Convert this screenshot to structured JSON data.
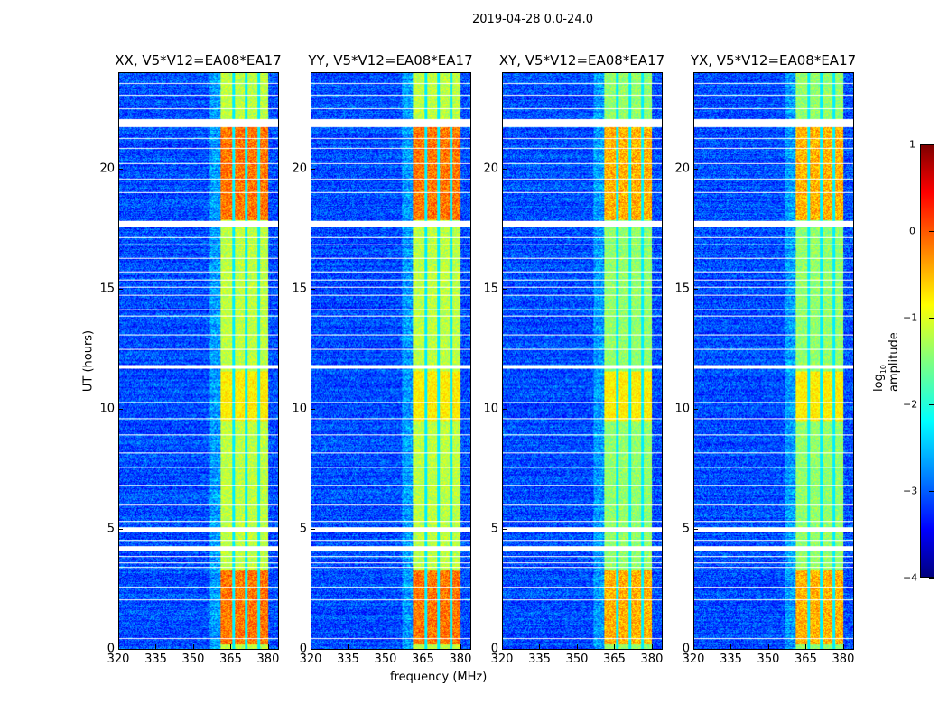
{
  "suptitle": "2019-04-28 0.0-24.0",
  "chart_data": {
    "type": "heatmap",
    "title": "2019-04-28 0.0-24.0",
    "xlabel": "frequency (MHz)",
    "ylabel": "UT (hours)",
    "xlim": [
      320,
      384
    ],
    "ylim": [
      0,
      24
    ],
    "xticks": [
      "320",
      "335",
      "350",
      "365",
      "380"
    ],
    "xtick_values": [
      320,
      335,
      350,
      365,
      380
    ],
    "yticks": [
      "0",
      "5",
      "10",
      "15",
      "20"
    ],
    "ytick_values": [
      0,
      5,
      10,
      15,
      20
    ],
    "panels": [
      {
        "title": "XX, V5*V12=EA08*EA17"
      },
      {
        "title": "YY, V5*V12=EA08*EA17"
      },
      {
        "title": "XY, V5*V12=EA08*EA17"
      },
      {
        "title": "YX, V5*V12=EA08*EA17"
      }
    ],
    "colorbar": {
      "label": "log10 amplitude",
      "label_main": "log",
      "label_sub": "10",
      "label_rest": " amplitude",
      "range": [
        -4,
        1
      ],
      "ticks": [
        "1",
        "0",
        "−1",
        "−2",
        "−3",
        "−4"
      ],
      "tick_values": [
        1,
        0,
        -1,
        -2,
        -3,
        -4
      ],
      "colormap": "jet"
    },
    "features": {
      "background_log_amp": -3.0,
      "band_mhz": [
        360.5,
        380
      ],
      "band_log_amp": -1.2,
      "bright_intervals_hours": [
        [
          0.2,
          3.3
        ],
        [
          17.9,
          22.0
        ]
      ],
      "bright_log_amp": -0.2,
      "band_gaps_mhz": [
        366,
        371,
        376
      ],
      "flagged_bands_hours": [
        [
          21.75,
          22.1
        ],
        [
          17.6,
          17.85
        ],
        [
          11.7,
          11.85
        ],
        [
          4.9,
          5.1
        ],
        [
          4.1,
          4.3
        ]
      ],
      "flagged_lines_hours": [
        0.45,
        2.05,
        2.6,
        3.4,
        3.6,
        3.85,
        4.55,
        5.35,
        6.0,
        6.85,
        7.6,
        8.2,
        8.95,
        9.6,
        10.3,
        12.5,
        13.1,
        13.9,
        14.15,
        14.75,
        15.1,
        15.4,
        15.75,
        16.3,
        16.85,
        17.15,
        19.05,
        19.6,
        20.25,
        20.9,
        21.3,
        22.55,
        23.1,
        23.6
      ]
    }
  }
}
